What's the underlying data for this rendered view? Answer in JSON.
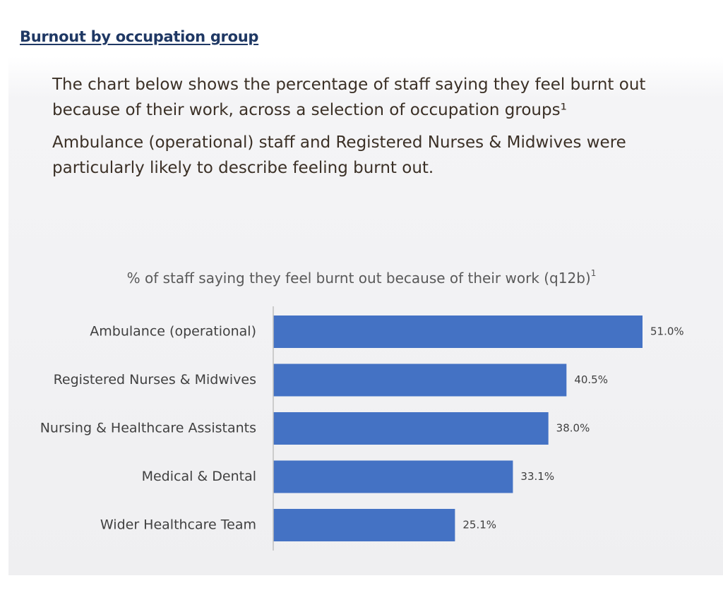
{
  "heading": "Burnout by occupation group",
  "intro": {
    "paragraph1": "The chart below shows the percentage of staff saying they feel burnt out because of their work, across a selection of occupation groups¹",
    "paragraph2": "Ambulance (operational) staff and Registered Nurses & Midwives were particularly likely to describe feeling burnt out."
  },
  "colors": {
    "bar": "#4472c4",
    "axis": "#bfbfbf",
    "label": "#404040",
    "heading": "#1f3864"
  },
  "chart_data": {
    "type": "bar",
    "orientation": "horizontal",
    "title": "% of staff saying they feel burnt out because of their work (q12b)",
    "title_superscript": "1",
    "categories": [
      "Ambulance (operational)",
      "Registered Nurses & Midwives",
      "Nursing & Healthcare Assistants",
      "Medical & Dental",
      "Wider Healthcare Team"
    ],
    "values": [
      51.0,
      40.5,
      38.0,
      33.1,
      25.1
    ],
    "data_labels": [
      "51.0%",
      "40.5%",
      "38.0%",
      "33.1%",
      "25.1%"
    ],
    "unit": "%",
    "xlim": [
      0,
      51.0
    ],
    "grid": false,
    "legend": "none"
  }
}
